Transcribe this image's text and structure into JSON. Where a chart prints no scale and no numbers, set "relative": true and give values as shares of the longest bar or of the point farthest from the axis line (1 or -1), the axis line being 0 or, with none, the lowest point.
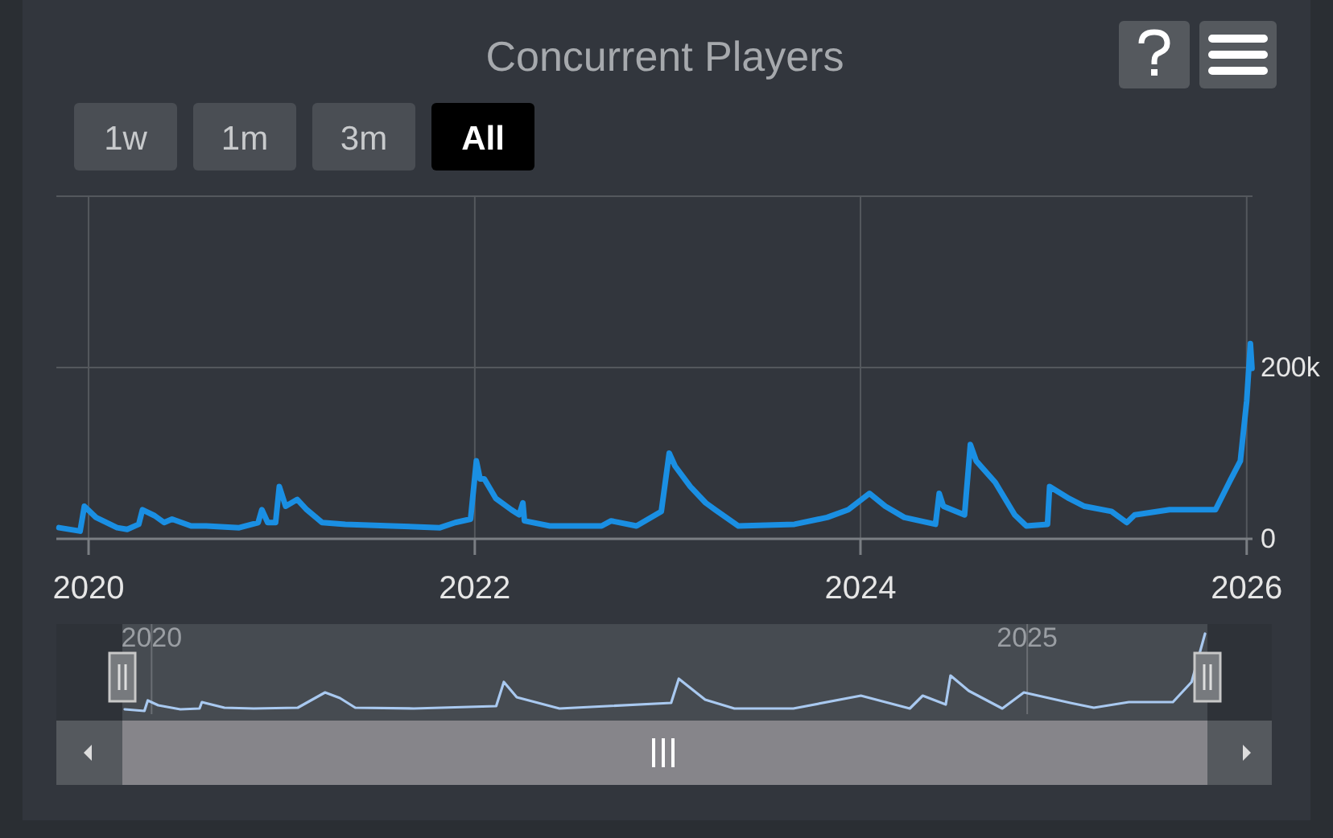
{
  "chart_data": [
    {
      "type": "line",
      "title": "Concurrent Players",
      "annotations": [
        "1w",
        "1m",
        "3m",
        "All"
      ],
      "xlim": [
        "2019-11-01",
        "2026-01-12"
      ],
      "xticks": [
        {
          "value": "2020-01-01",
          "label": "2020"
        },
        {
          "value": "2022-01-01",
          "label": "2022"
        },
        {
          "value": "2024-01-01",
          "label": "2024"
        },
        {
          "value": "2026-01-01",
          "label": "2026"
        }
      ],
      "ylim": [
        0,
        400000
      ],
      "yticks": [
        0,
        {
          "value": 200000,
          "label": "200k"
        },
        {
          "value": 400000,
          "label": null
        }
      ],
      "grid": true,
      "series": [
        {
          "color": "#1a8fe3",
          "x": [
            "2019-11-06",
            "2019-12-16",
            "2019-12-24",
            "2020-01-15",
            "2020-02-24",
            "2020-03-14",
            "2020-04-05",
            "2020-04-12",
            "2020-05-05",
            "2020-05-23",
            "2020-06-07",
            "2020-07-13",
            "2020-08-11",
            "2020-10-12",
            "2020-11-17",
            "2020-11-24",
            "2020-12-05",
            "2020-12-20",
            "2020-12-27",
            "2021-01-08",
            "2021-01-30",
            "2021-02-17",
            "2021-03-18",
            "2021-05-01",
            "2021-07-28",
            "2021-10-27",
            "2021-11-25",
            "2021-12-24",
            "2022-01-04",
            "2022-01-11",
            "2022-01-19",
            "2022-02-10",
            "2022-03-11",
            "2022-03-26",
            "2022-04-02",
            "2022-04-05",
            "2022-05-23",
            "2022-08-29",
            "2022-09-16",
            "2022-11-03",
            "2022-12-20",
            "2023-01-04",
            "2023-01-15",
            "2023-02-13",
            "2023-03-14",
            "2023-04-01",
            "2023-05-15",
            "2023-08-29",
            "2023-10-30",
            "2023-12-09",
            "2024-01-18",
            "2024-02-17",
            "2024-03-24",
            "2024-05-22",
            "2024-05-29",
            "2024-06-06",
            "2024-07-16",
            "2024-07-27",
            "2024-08-07",
            "2024-09-12",
            "2024-10-19",
            "2024-11-10",
            "2024-12-20",
            "2024-12-24",
            "2025-01-30",
            "2025-02-28",
            "2025-04-20",
            "2025-05-19",
            "2025-06-03",
            "2025-08-08",
            "2025-11-03",
            "2025-11-29",
            "2025-12-20",
            "2026-01-01",
            "2026-01-08",
            "2026-01-11"
          ],
          "values": [
            13000,
            9000,
            38000,
            25000,
            13000,
            11000,
            17000,
            34000,
            27000,
            19000,
            23000,
            15000,
            15000,
            13000,
            19000,
            34000,
            19000,
            19000,
            61000,
            38000,
            46000,
            34000,
            19000,
            17000,
            15000,
            13000,
            19000,
            23000,
            91000,
            70000,
            70000,
            47000,
            34000,
            28000,
            42000,
            21000,
            15000,
            15000,
            21000,
            15000,
            32000,
            100000,
            85000,
            61000,
            42000,
            34000,
            15000,
            17000,
            25000,
            34000,
            53000,
            38000,
            25000,
            17000,
            53000,
            38000,
            28000,
            110000,
            91000,
            66000,
            28000,
            15000,
            17000,
            61000,
            47000,
            38000,
            32000,
            19000,
            28000,
            34000,
            34000,
            66000,
            91000,
            161000,
            228000,
            199000
          ]
        }
      ]
    },
    {
      "type": "line",
      "relative": true,
      "xlim": [
        "2019-11-01",
        "2026-01-12"
      ],
      "xticks": [
        {
          "value": "2020-01-01",
          "label": "2020"
        },
        {
          "value": "2025-01-01",
          "label": "2025"
        }
      ],
      "grid": "x",
      "series": [
        {
          "color": "#a9c9f0",
          "x": [
            "2019-11-06",
            "2019-12-17",
            "2019-12-24",
            "2020-01-15",
            "2020-03-01",
            "2020-04-10",
            "2020-04-15",
            "2020-06-01",
            "2020-08-01",
            "2020-11-01",
            "2020-12-28",
            "2021-01-28",
            "2021-03-01",
            "2021-07-01",
            "2021-12-20",
            "2022-01-05",
            "2022-02-01",
            "2022-05-01",
            "2022-12-20",
            "2023-01-05",
            "2023-03-01",
            "2023-05-01",
            "2023-09-01",
            "2024-01-20",
            "2024-05-01",
            "2024-05-28",
            "2024-07-15",
            "2024-07-25",
            "2024-09-01",
            "2024-11-10",
            "2024-12-25",
            "2025-04-01",
            "2025-05-20",
            "2025-08-01",
            "2025-11-01",
            "2025-12-10",
            "2026-01-07"
          ],
          "values": [
            0.06,
            0.04,
            0.17,
            0.11,
            0.06,
            0.07,
            0.15,
            0.08,
            0.07,
            0.08,
            0.27,
            0.2,
            0.08,
            0.07,
            0.1,
            0.4,
            0.21,
            0.07,
            0.14,
            0.44,
            0.18,
            0.07,
            0.07,
            0.23,
            0.07,
            0.23,
            0.12,
            0.48,
            0.29,
            0.07,
            0.27,
            0.14,
            0.08,
            0.15,
            0.15,
            0.4,
            1
          ]
        }
      ]
    }
  ]
}
